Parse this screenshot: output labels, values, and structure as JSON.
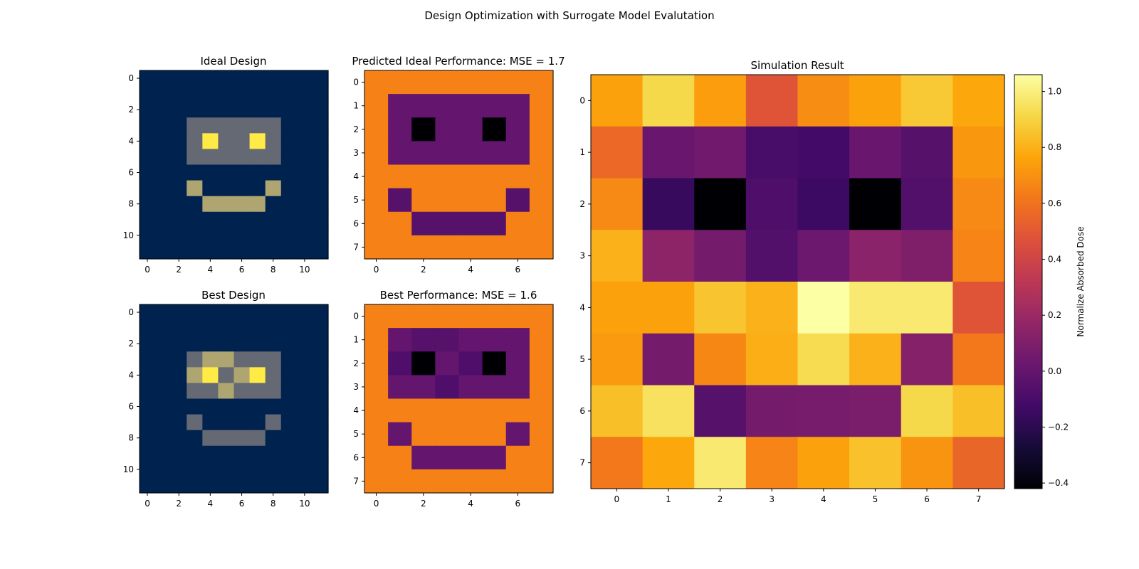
{
  "figure": {
    "suptitle": "Design Optimization with Surrogate Model Evalutation"
  },
  "chart_data": [
    {
      "type": "heatmap",
      "title": "Ideal Design",
      "colormap": "cividis",
      "vrange": [
        0,
        1
      ],
      "xticks": [
        0,
        2,
        4,
        6,
        8,
        10
      ],
      "yticks": [
        0,
        2,
        4,
        6,
        8,
        10
      ],
      "grid": false,
      "values": [
        [
          0,
          0,
          0,
          0,
          0,
          0,
          0,
          0,
          0,
          0,
          0,
          0
        ],
        [
          0,
          0,
          0,
          0,
          0,
          0,
          0,
          0,
          0,
          0,
          0,
          0
        ],
        [
          0,
          0,
          0,
          0,
          0,
          0,
          0,
          0,
          0,
          0,
          0,
          0
        ],
        [
          0,
          0,
          0,
          0.4,
          0.4,
          0.4,
          0.4,
          0.4,
          0.4,
          0,
          0,
          0
        ],
        [
          0,
          0,
          0,
          0.4,
          1,
          0.4,
          0.4,
          1,
          0.4,
          0,
          0,
          0
        ],
        [
          0,
          0,
          0,
          0.4,
          0.4,
          0.4,
          0.4,
          0.4,
          0.4,
          0,
          0,
          0
        ],
        [
          0,
          0,
          0,
          0,
          0,
          0,
          0,
          0,
          0,
          0,
          0,
          0
        ],
        [
          0,
          0,
          0,
          0.7,
          0,
          0,
          0,
          0,
          0.7,
          0,
          0,
          0
        ],
        [
          0,
          0,
          0,
          0,
          0.7,
          0.7,
          0.7,
          0.7,
          0,
          0,
          0,
          0
        ],
        [
          0,
          0,
          0,
          0,
          0,
          0,
          0,
          0,
          0,
          0,
          0,
          0
        ],
        [
          0,
          0,
          0,
          0,
          0,
          0,
          0,
          0,
          0,
          0,
          0,
          0
        ],
        [
          0,
          0,
          0,
          0,
          0,
          0,
          0,
          0,
          0,
          0,
          0,
          0
        ]
      ]
    },
    {
      "type": "heatmap",
      "title": "Predicted Ideal Performance: MSE = 1.7",
      "colormap": "inferno",
      "vrange": [
        -0.42,
        1.06
      ],
      "xticks": [
        0,
        2,
        4,
        6
      ],
      "yticks": [
        0,
        1,
        2,
        3,
        4,
        5,
        6,
        7
      ],
      "grid": false,
      "values": [
        [
          0.65,
          0.65,
          0.65,
          0.65,
          0.65,
          0.65,
          0.65,
          0.65
        ],
        [
          0.65,
          0.0,
          0.0,
          0.0,
          0.0,
          0.0,
          0.0,
          0.65
        ],
        [
          0.65,
          0.0,
          -0.42,
          0.0,
          0.0,
          -0.42,
          0.0,
          0.65
        ],
        [
          0.65,
          0.0,
          0.0,
          0.0,
          0.0,
          0.0,
          0.0,
          0.65
        ],
        [
          0.65,
          0.65,
          0.65,
          0.65,
          0.65,
          0.65,
          0.65,
          0.65
        ],
        [
          0.65,
          -0.05,
          0.65,
          0.65,
          0.65,
          0.65,
          -0.05,
          0.65
        ],
        [
          0.65,
          0.65,
          -0.05,
          -0.05,
          -0.05,
          -0.05,
          0.65,
          0.65
        ],
        [
          0.65,
          0.65,
          0.65,
          0.65,
          0.65,
          0.65,
          0.65,
          0.65
        ]
      ]
    },
    {
      "type": "heatmap",
      "title": "Best Design",
      "colormap": "cividis",
      "vrange": [
        0,
        1
      ],
      "xticks": [
        0,
        2,
        4,
        6,
        8,
        10
      ],
      "yticks": [
        0,
        2,
        4,
        6,
        8,
        10
      ],
      "grid": false,
      "values": [
        [
          0,
          0,
          0,
          0,
          0,
          0,
          0,
          0,
          0,
          0,
          0,
          0
        ],
        [
          0,
          0,
          0,
          0,
          0,
          0,
          0,
          0,
          0,
          0,
          0,
          0
        ],
        [
          0,
          0,
          0,
          0,
          0,
          0,
          0,
          0,
          0,
          0,
          0,
          0
        ],
        [
          0,
          0,
          0,
          0.4,
          0.7,
          0.7,
          0.4,
          0.4,
          0.4,
          0,
          0,
          0
        ],
        [
          0,
          0,
          0,
          0.7,
          1,
          0.4,
          0.7,
          1,
          0.4,
          0,
          0,
          0
        ],
        [
          0,
          0,
          0,
          0.4,
          0.4,
          0.7,
          0.4,
          0.4,
          0.4,
          0,
          0,
          0
        ],
        [
          0,
          0,
          0,
          0,
          0,
          0,
          0,
          0,
          0,
          0,
          0,
          0
        ],
        [
          0,
          0,
          0,
          0.4,
          0,
          0,
          0,
          0,
          0.4,
          0,
          0,
          0
        ],
        [
          0,
          0,
          0,
          0,
          0.4,
          0.4,
          0.4,
          0.4,
          0,
          0,
          0,
          0
        ],
        [
          0,
          0,
          0,
          0,
          0,
          0,
          0,
          0,
          0,
          0,
          0,
          0
        ],
        [
          0,
          0,
          0,
          0,
          0,
          0,
          0,
          0,
          0,
          0,
          0,
          0
        ],
        [
          0,
          0,
          0,
          0,
          0,
          0,
          0,
          0,
          0,
          0,
          0,
          0
        ]
      ]
    },
    {
      "type": "heatmap",
      "title": "Best Performance: MSE = 1.6",
      "colormap": "inferno",
      "vrange": [
        -0.42,
        1.06
      ],
      "xticks": [
        0,
        2,
        4,
        6
      ],
      "yticks": [
        0,
        1,
        2,
        3,
        4,
        5,
        6,
        7
      ],
      "grid": false,
      "values": [
        [
          0.65,
          0.65,
          0.65,
          0.65,
          0.65,
          0.65,
          0.65,
          0.65
        ],
        [
          0.65,
          0.0,
          -0.05,
          -0.05,
          0.0,
          0.0,
          0.0,
          0.65
        ],
        [
          0.65,
          -0.08,
          -0.42,
          0.0,
          -0.08,
          -0.42,
          0.0,
          0.65
        ],
        [
          0.65,
          0.0,
          0.0,
          -0.08,
          0.0,
          0.0,
          0.0,
          0.65
        ],
        [
          0.65,
          0.65,
          0.65,
          0.65,
          0.65,
          0.65,
          0.65,
          0.65
        ],
        [
          0.65,
          0.0,
          0.65,
          0.65,
          0.65,
          0.65,
          0.0,
          0.65
        ],
        [
          0.65,
          0.65,
          0.0,
          0.0,
          0.0,
          0.0,
          0.65,
          0.65
        ],
        [
          0.65,
          0.65,
          0.65,
          0.65,
          0.65,
          0.65,
          0.65,
          0.65
        ]
      ]
    },
    {
      "type": "heatmap",
      "title": "Simulation Result",
      "colormap": "inferno",
      "vrange": [
        -0.42,
        1.06
      ],
      "xticks": [
        0,
        1,
        2,
        3,
        4,
        5,
        6,
        7
      ],
      "yticks": [
        0,
        1,
        2,
        3,
        4,
        5,
        6,
        7
      ],
      "grid": false,
      "colorbar": {
        "label": "Normalize Absorbed Dose",
        "ticks": [
          "−0.4",
          "−0.2",
          "0.0",
          "0.2",
          "0.4",
          "0.6",
          "0.8",
          "1.0"
        ],
        "tick_values": [
          -0.4,
          -0.2,
          0.0,
          0.2,
          0.4,
          0.6,
          0.8,
          1.0
        ]
      },
      "values": [
        [
          0.75,
          0.92,
          0.74,
          0.48,
          0.69,
          0.75,
          0.87,
          0.77
        ],
        [
          0.56,
          0.02,
          0.05,
          -0.1,
          -0.12,
          0.02,
          -0.05,
          0.72
        ],
        [
          0.68,
          -0.16,
          -0.42,
          -0.08,
          -0.14,
          -0.42,
          -0.06,
          0.68
        ],
        [
          0.8,
          0.15,
          0.06,
          -0.06,
          0.03,
          0.14,
          0.1,
          0.66
        ],
        [
          0.75,
          0.75,
          0.86,
          0.8,
          1.06,
          0.98,
          0.98,
          0.48
        ],
        [
          0.73,
          0.06,
          0.67,
          0.79,
          0.93,
          0.8,
          0.12,
          0.62
        ],
        [
          0.84,
          0.95,
          -0.05,
          0.06,
          0.07,
          0.08,
          0.92,
          0.84
        ],
        [
          0.62,
          0.77,
          0.98,
          0.66,
          0.75,
          0.85,
          0.71,
          0.55
        ]
      ]
    }
  ]
}
